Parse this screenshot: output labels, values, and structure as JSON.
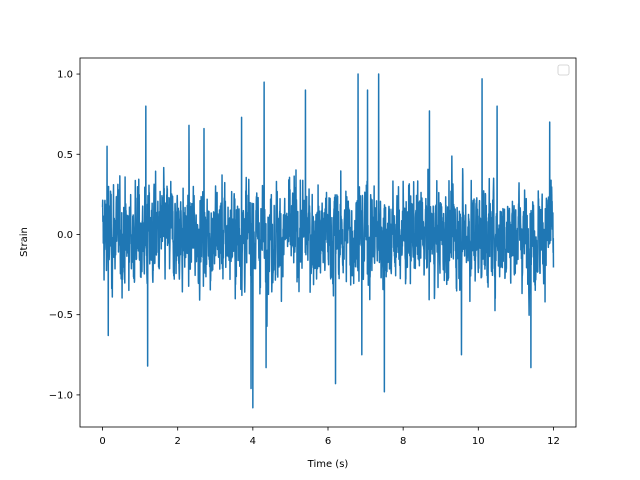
{
  "chart_data": {
    "type": "line",
    "title": "",
    "xlabel": "Time (s)",
    "ylabel": "Strain",
    "xlim": [
      -0.6,
      12.6
    ],
    "ylim": [
      -1.2,
      1.1
    ],
    "xticks": [
      0,
      2,
      4,
      6,
      8,
      10,
      12
    ],
    "xtick_labels": [
      "0",
      "2",
      "4",
      "6",
      "8",
      "10",
      "12"
    ],
    "yticks": [
      -1.0,
      -0.5,
      0.0,
      0.5,
      1.0
    ],
    "ytick_labels": [
      "−1.0",
      "−0.5",
      "0.0",
      "0.5",
      "1.0"
    ],
    "grid": false,
    "legend": {
      "placement": "upper right",
      "entries": []
    },
    "series": [
      {
        "color": "#1f77b4",
        "x_start": 0,
        "x_end": 12,
        "amplitude_envelope": {
          "typical_range": [
            -0.5,
            0.5
          ],
          "max": 1.0,
          "min": -1.08
        },
        "peaks": [
          {
            "x": 0.12,
            "y": 0.55
          },
          {
            "x": 0.15,
            "y": -0.5
          },
          {
            "x": 0.15,
            "y": 0.7
          },
          {
            "x": 0.15,
            "y": -0.63
          },
          {
            "x": 1.15,
            "y": 0.8
          },
          {
            "x": 1.2,
            "y": -0.82
          },
          {
            "x": 2.3,
            "y": 0.68
          },
          {
            "x": 2.7,
            "y": 0.66
          },
          {
            "x": 3.7,
            "y": 0.73
          },
          {
            "x": 3.95,
            "y": -0.96
          },
          {
            "x": 4.0,
            "y": -1.08
          },
          {
            "x": 4.3,
            "y": 0.95
          },
          {
            "x": 4.35,
            "y": -0.83
          },
          {
            "x": 5.4,
            "y": 0.9
          },
          {
            "x": 6.2,
            "y": -0.93
          },
          {
            "x": 6.8,
            "y": 1.0
          },
          {
            "x": 6.9,
            "y": -0.75
          },
          {
            "x": 7.05,
            "y": 0.9
          },
          {
            "x": 7.35,
            "y": 1.0
          },
          {
            "x": 7.5,
            "y": -0.98
          },
          {
            "x": 8.7,
            "y": 0.77
          },
          {
            "x": 9.55,
            "y": -0.75
          },
          {
            "x": 10.1,
            "y": 0.97
          },
          {
            "x": 10.5,
            "y": 0.8
          },
          {
            "x": 11.4,
            "y": -0.83
          },
          {
            "x": 11.9,
            "y": 0.7
          }
        ]
      }
    ]
  }
}
